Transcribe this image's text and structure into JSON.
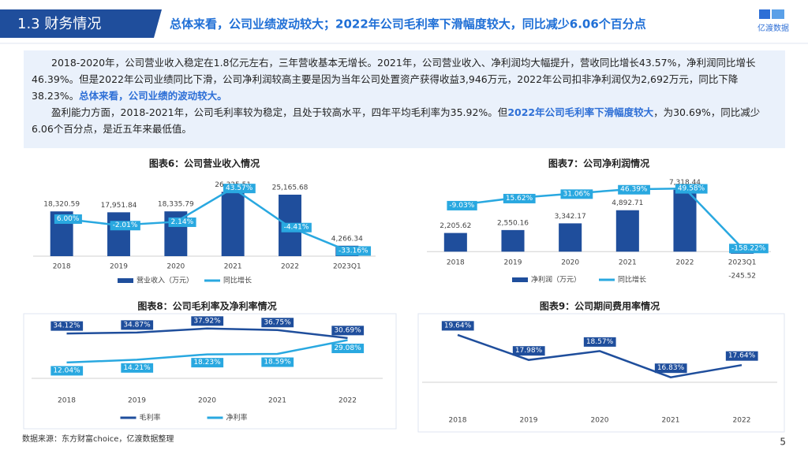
{
  "header": {
    "section": "1.3 财务情况",
    "headline": "总体来看，公司业绩波动较大；2022年公司毛利率下滑幅度较大，同比减少6.06个百分点",
    "logo": "亿渡数据"
  },
  "paragraphs": [
    [
      "2018-2020年，公司营业收入稳定在1.8亿元左右，三年营收基本无增长。2021年，公司营业收入、净利润均大幅提升，营收同比增长43.57%，净利润同比增长46.39%。但是2022年公司业绩同比下滑，公司净利润较高主要是因为当年公司处置资产获得收益3,946万元，2022年公司扣非净利润仅为2,692万元，同比下降38.23%。",
      "总体来看，公司业绩的波动较大。"
    ],
    [
      "盈利能力方面，2018-2021年，公司毛利率较为稳定，且处于较高水平，四年平均毛利率为35.92%。但",
      "2022年公司毛利率下滑幅度较大",
      "，为30.69%，同比减少6.06个百分点，是近五年来最低值。"
    ]
  ],
  "chart_data": [
    {
      "type": "bar",
      "title": "图表6：公司营业收入情况",
      "categories": [
        "2018",
        "2019",
        "2020",
        "2021",
        "2022",
        "2023Q1"
      ],
      "ylim": [
        0,
        30000
      ],
      "y2lim": [
        -40,
        50
      ],
      "series": [
        {
          "name": "营业收入（万元）",
          "color": "#1f4e9c",
          "values": [
            18320.59,
            17951.84,
            18335.79,
            26325.51,
            25165.68,
            4266.34
          ],
          "value_labels": [
            "18,320.59",
            "17,951.84",
            "18,335.79",
            "26,325.51",
            "25,165.68",
            "4,266.34"
          ]
        },
        {
          "name": "同比增长",
          "type": "line",
          "axis": "y2",
          "color": "#29a8e0",
          "values": [
            6.0,
            -2.01,
            2.14,
            43.57,
            -4.41,
            -33.16
          ],
          "value_labels": [
            "6.00%",
            "-2.01%",
            "2.14%",
            "43.57%",
            "-4.41%",
            "-33.16%"
          ]
        }
      ]
    },
    {
      "type": "bar",
      "title": "图表7：公司净利润情况",
      "categories": [
        "2018",
        "2019",
        "2020",
        "2021",
        "2022",
        "2023Q1"
      ],
      "ylim": [
        -1000,
        8500
      ],
      "y2lim": [
        -200,
        80
      ],
      "series": [
        {
          "name": "净利润（万元）",
          "color": "#1f4e9c",
          "values": [
            2205.62,
            2550.16,
            3342.17,
            4892.71,
            7318.44,
            -245.52
          ],
          "value_labels": [
            "2,205.62",
            "2,550.16",
            "3,342.17",
            "4,892.71",
            "7,318.44",
            "-245.52"
          ]
        },
        {
          "name": "同比增长",
          "type": "line",
          "axis": "y2",
          "color": "#29a8e0",
          "values": [
            -9.03,
            15.62,
            31.06,
            46.39,
            49.58,
            -158.22
          ],
          "value_labels": [
            "-9.03%",
            "15.62%",
            "31.06%",
            "46.39%",
            "49.58%",
            "-158.22%"
          ]
        }
      ]
    },
    {
      "type": "line",
      "title": "图表8：公司毛利率及净利率情况",
      "categories": [
        "2018",
        "2019",
        "2020",
        "2021",
        "2022"
      ],
      "ylim": [
        0,
        45
      ],
      "series": [
        {
          "name": "毛利率",
          "color": "#1f4e9c",
          "values": [
            34.12,
            34.87,
            37.92,
            36.75,
            30.69
          ],
          "value_labels": [
            "34.12%",
            "34.87%",
            "37.92%",
            "36.75%",
            "30.69%"
          ]
        },
        {
          "name": "净利率",
          "color": "#29a8e0",
          "values": [
            12.04,
            14.21,
            18.23,
            18.59,
            29.08
          ],
          "value_labels": [
            "12.04%",
            "14.21%",
            "18.23%",
            "18.59%",
            "29.08%"
          ]
        }
      ]
    },
    {
      "type": "line",
      "title": "图表9：公司期间费用率情况",
      "categories": [
        "2018",
        "2019",
        "2020",
        "2021",
        "2022"
      ],
      "ylim": [
        16.5,
        20
      ],
      "color": "#1f4e9c",
      "values": [
        19.64,
        17.98,
        18.57,
        16.83,
        17.64
      ],
      "value_labels": [
        "19.64%",
        "17.98%",
        "18.57%",
        "16.83%",
        "17.64%"
      ]
    }
  ],
  "source": "数据来源：东方财富choice，亿渡数据整理",
  "page": "5"
}
